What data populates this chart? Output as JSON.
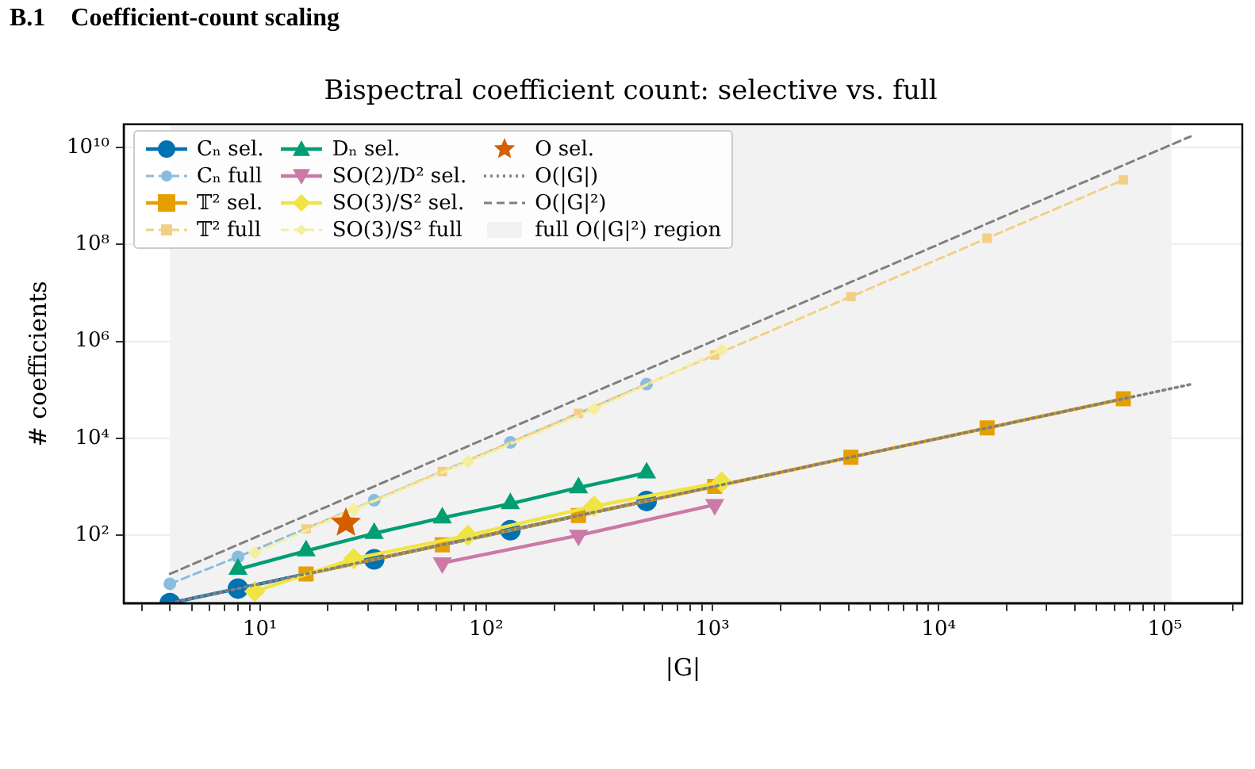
{
  "chart_data": {
    "type": "line",
    "title": "Bispectral coefficient count: selective vs. full",
    "xlabel": "|G|",
    "ylabel": "# coefficients",
    "annotations": [
      "B.1    Coefficient-count scaling"
    ],
    "log": "xy",
    "grid": true,
    "legend": "top left",
    "xlim": [
      2.5,
      220000
    ],
    "ylim": [
      4,
      30000000000
    ],
    "xticks": [
      {
        "value": 3,
        "label": null
      },
      {
        "value": 4,
        "label": null
      },
      {
        "value": 5,
        "label": null
      },
      {
        "value": 6,
        "label": null
      },
      {
        "value": 7,
        "label": null
      },
      {
        "value": 8,
        "label": null
      },
      {
        "value": 9,
        "label": null
      },
      {
        "value": 10,
        "label": "10¹"
      },
      {
        "value": 20,
        "label": null
      },
      {
        "value": 30,
        "label": null
      },
      {
        "value": 40,
        "label": null
      },
      {
        "value": 50,
        "label": null
      },
      {
        "value": 60,
        "label": null
      },
      {
        "value": 70,
        "label": null
      },
      {
        "value": 80,
        "label": null
      },
      {
        "value": 90,
        "label": null
      },
      {
        "value": 100,
        "label": "10²"
      },
      {
        "value": 200,
        "label": null
      },
      {
        "value": 300,
        "label": null
      },
      {
        "value": 400,
        "label": null
      },
      {
        "value": 500,
        "label": null
      },
      {
        "value": 600,
        "label": null
      },
      {
        "value": 700,
        "label": null
      },
      {
        "value": 800,
        "label": null
      },
      {
        "value": 900,
        "label": null
      },
      {
        "value": 1000,
        "label": "10³"
      },
      {
        "value": 2000,
        "label": null
      },
      {
        "value": 3000,
        "label": null
      },
      {
        "value": 4000,
        "label": null
      },
      {
        "value": 5000,
        "label": null
      },
      {
        "value": 6000,
        "label": null
      },
      {
        "value": 7000,
        "label": null
      },
      {
        "value": 8000,
        "label": null
      },
      {
        "value": 9000,
        "label": null
      },
      {
        "value": 10000,
        "label": "10⁴"
      },
      {
        "value": 20000,
        "label": null
      },
      {
        "value": 30000,
        "label": null
      },
      {
        "value": 40000,
        "label": null
      },
      {
        "value": 50000,
        "label": null
      },
      {
        "value": 60000,
        "label": null
      },
      {
        "value": 70000,
        "label": null
      },
      {
        "value": 80000,
        "label": null
      },
      {
        "value": 90000,
        "label": null
      },
      {
        "value": 100000,
        "label": "10⁵"
      },
      {
        "value": 200000,
        "label": null
      }
    ],
    "yticks": [
      {
        "value": 100,
        "label": "10²"
      },
      {
        "value": 10000,
        "label": "10⁴"
      },
      {
        "value": 1000000,
        "label": "10⁶"
      },
      {
        "value": 100000000,
        "label": "10⁸"
      },
      {
        "value": 10000000000,
        "label": "10¹⁰"
      }
    ],
    "bands": [
      {
        "axis": "x",
        "from": 4,
        "to": 107000,
        "label": "full O(|G|²) region",
        "color": "#f2f2f2"
      }
    ],
    "series": [
      {
        "name": "Cₙ sel.",
        "color": "#0072b2",
        "marker": "circle",
        "line_style": "solid",
        "x": [
          4,
          8,
          32,
          128,
          512
        ],
        "values": [
          4,
          8,
          32,
          128,
          512
        ]
      },
      {
        "name": "Cₙ full",
        "color": "#88bde0",
        "marker": "circle",
        "line_style": "dashed",
        "x": [
          4,
          8,
          32,
          128,
          512
        ],
        "values": [
          10,
          36,
          528,
          8256,
          131328
        ]
      },
      {
        "name": "𝕋² sel.",
        "color": "#e69f00",
        "marker": "square",
        "line_style": "solid",
        "x": [
          16,
          64,
          256,
          1024,
          4096,
          16384,
          65536
        ],
        "values": [
          16,
          64,
          256,
          1024,
          4096,
          16384,
          65536
        ]
      },
      {
        "name": "𝕋² full",
        "color": "#f3cf85",
        "marker": "square",
        "line_style": "dashed",
        "x": [
          16,
          64,
          256,
          1024,
          4096,
          16384,
          65536
        ],
        "values": [
          136,
          2080,
          32896,
          524800,
          8390656,
          134225920,
          2147516416
        ]
      },
      {
        "name": "Dₙ sel.",
        "color": "#009e73",
        "marker": "triangle",
        "line_style": "solid",
        "x": [
          8,
          16,
          32,
          64,
          128,
          256,
          512
        ],
        "values": [
          20,
          48,
          110,
          230,
          450,
          960,
          1950
        ]
      },
      {
        "name": "SO(2)/D² sel.",
        "color": "#cc79a7",
        "marker": "triangle_down",
        "line_style": "solid",
        "x": [
          64,
          256,
          1024
        ],
        "values": [
          27,
          100,
          430
        ]
      },
      {
        "name": "SO(3)/S² sel.",
        "color": "#f0e442",
        "marker": "diamond",
        "line_style": "solid",
        "x": [
          9.5,
          26,
          83,
          300,
          1100
        ],
        "values": [
          7,
          33,
          100,
          400,
          1250
        ]
      },
      {
        "name": "SO(3)/S² full",
        "color": "#f5ee9e",
        "marker": "diamond",
        "line_style": "dashed",
        "x": [
          9.5,
          26,
          83,
          300,
          1100
        ],
        "values": [
          44,
          340,
          3300,
          40000,
          660000
        ]
      },
      {
        "name": "O sel.",
        "type": "scatter",
        "color": "#d55e00",
        "marker": "star",
        "x": [
          24
        ],
        "values": [
          180
        ]
      },
      {
        "name": "O(|G|)",
        "color": "#808080",
        "marker": "none",
        "line_style": "dotted",
        "x": [
          4,
          130000
        ],
        "values": [
          4,
          130000
        ]
      },
      {
        "name": "O(|G|²)",
        "color": "#808080",
        "marker": "none",
        "line_style": "dashed",
        "x": [
          4,
          130000
        ],
        "values": [
          16,
          16900000000
        ]
      }
    ]
  }
}
